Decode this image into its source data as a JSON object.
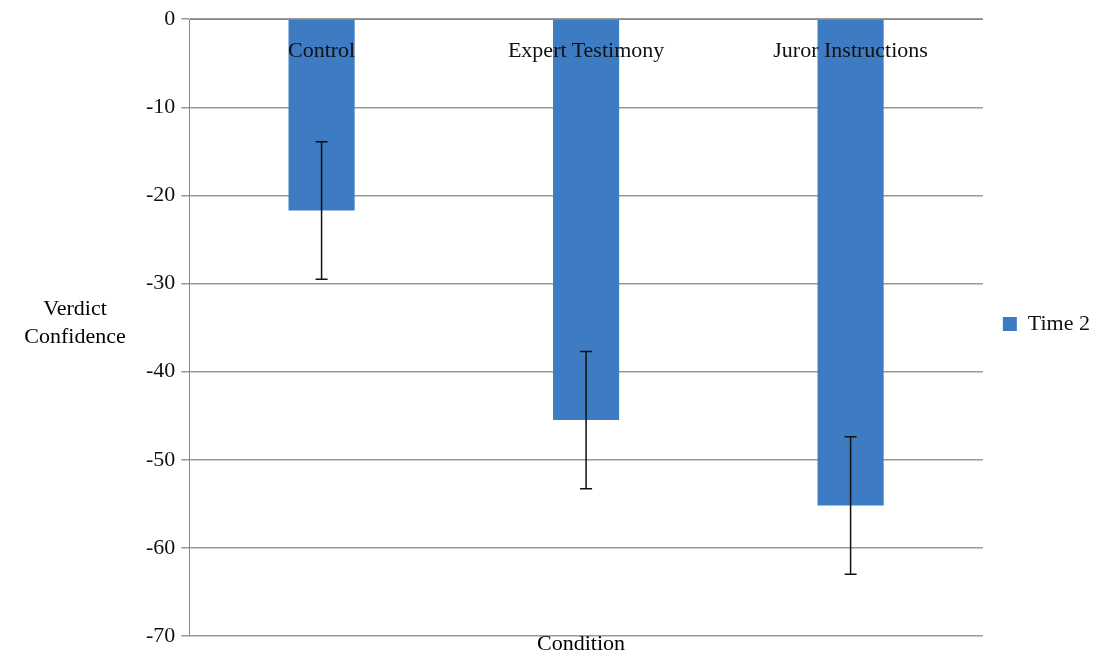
{
  "chart_data": {
    "type": "bar",
    "xlabel": "Condition",
    "ylabel": "Verdict Confidence",
    "categories": [
      "Control",
      "Expert Testimony",
      "Juror Instructions"
    ],
    "series": [
      {
        "name": "Time 2",
        "color": "#3d7bc2",
        "values": [
          -21.7,
          -45.5,
          -55.2
        ],
        "errors": [
          7.8,
          7.8,
          7.8
        ]
      }
    ],
    "ylim": [
      -70,
      0
    ],
    "yticks": [
      -70,
      -60,
      -50,
      -40,
      -30,
      -20,
      -10,
      0
    ],
    "grid": "y",
    "legend": "right"
  }
}
